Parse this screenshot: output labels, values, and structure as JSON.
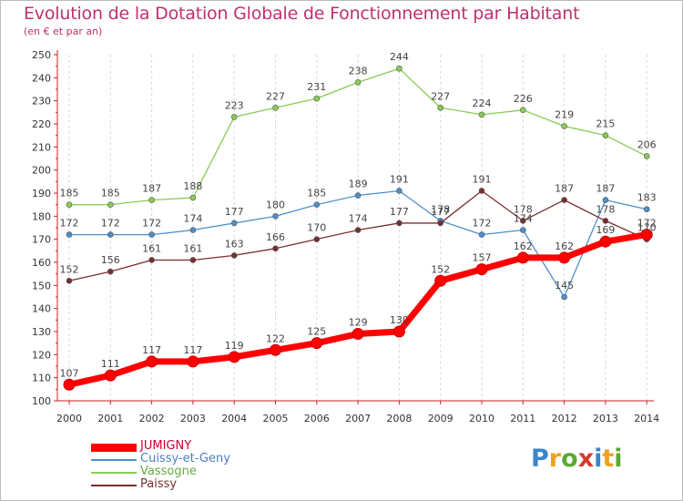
{
  "chart_data": {
    "type": "line",
    "title": "Evolution de la Dotation Globale de Fonctionnement par Habitant",
    "subtitle": "(en € et par an)",
    "x": [
      "2000",
      "2001",
      "2002",
      "2003",
      "2004",
      "2005",
      "2006",
      "2007",
      "2008",
      "2009",
      "2010",
      "2011",
      "2012",
      "2013",
      "2014"
    ],
    "ylim": [
      100,
      250
    ],
    "yticks": [
      100,
      110,
      120,
      130,
      140,
      150,
      160,
      170,
      180,
      190,
      200,
      210,
      220,
      230,
      240,
      250
    ],
    "grid": "vertical dashed",
    "series": [
      {
        "name": "JUMIGNY",
        "color": "#ff0000",
        "values": [
          107,
          111,
          117,
          117,
          119,
          122,
          125,
          129,
          130,
          152,
          157,
          162,
          162,
          169,
          172
        ],
        "labels": [
          "107",
          "111",
          "117",
          "117",
          "119",
          "122",
          "125",
          "129",
          "130",
          "152",
          "157",
          "162",
          "162",
          "169",
          "172"
        ]
      },
      {
        "name": "Cuissy-et-Geny",
        "color": "#4d90cc",
        "values": [
          172,
          172,
          172,
          174,
          177,
          180,
          185,
          189,
          191,
          178,
          172,
          174,
          145,
          187,
          183
        ],
        "labels": [
          "172",
          "172",
          "172",
          "174",
          "177",
          "180",
          "185",
          "189",
          "191",
          "178",
          "172",
          "174",
          "145",
          "187",
          "183"
        ]
      },
      {
        "name": "Vassogne",
        "color": "#88cc55",
        "values": [
          185,
          185,
          187,
          188,
          223,
          227,
          231,
          238,
          244,
          227,
          224,
          226,
          219,
          215,
          206
        ],
        "labels": [
          "185",
          "185",
          "187",
          "188",
          "223",
          "227",
          "231",
          "238",
          "244",
          "227",
          "224",
          "226",
          "219",
          "215",
          "206"
        ]
      },
      {
        "name": "Paissy",
        "color": "#7a2e2e",
        "values": [
          152,
          156,
          161,
          161,
          163,
          166,
          170,
          174,
          177,
          177,
          191,
          178,
          187,
          178,
          170
        ],
        "labels": [
          "152",
          "156",
          "161",
          "161",
          "163",
          "166",
          "170",
          "174",
          "177",
          "177",
          "191",
          "178",
          "187",
          "178",
          "170"
        ]
      }
    ],
    "legend": "bottom-left"
  },
  "brand": {
    "letters": [
      "P",
      "r",
      "o",
      "x",
      "i",
      "t",
      "i"
    ],
    "colors": [
      "#3a86c8",
      "#f0a020",
      "#5aaa30",
      "#d43c2c",
      "#3a86c8",
      "#f0a020",
      "#5aaa30"
    ]
  }
}
